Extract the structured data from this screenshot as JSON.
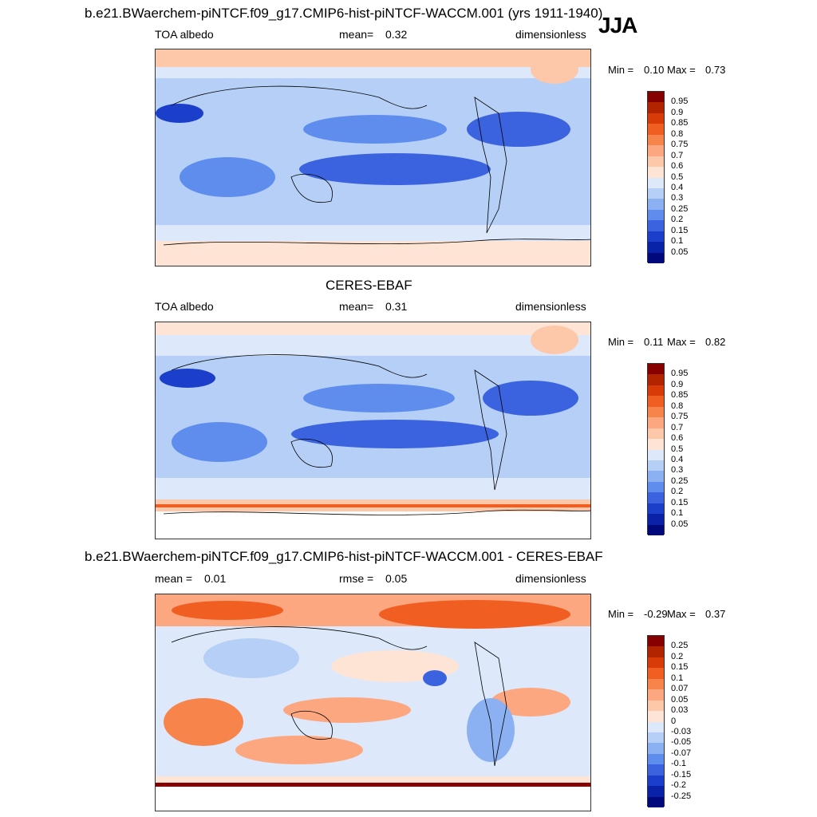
{
  "header": {
    "main_title": "b.e21.BWaerchem-piNTCF.f09_g17.CMIP6-hist-piNTCF-WACCM.001 (yrs 1911-1940)",
    "season": "JJA"
  },
  "panels": [
    {
      "id": "model",
      "title": "",
      "variable": "TOA albedo",
      "stat_label": "mean=",
      "stat_value": "0.32",
      "units": "dimensionless",
      "min_label": "Min =",
      "min_value": "0.10",
      "max_label": "Max =",
      "max_value": "0.73",
      "colorbar_labels": [
        "0.95",
        "0.9",
        "0.85",
        "0.8",
        "0.75",
        "0.7",
        "0.6",
        "0.5",
        "0.4",
        "0.3",
        "0.25",
        "0.2",
        "0.15",
        "0.1",
        "0.05"
      ]
    },
    {
      "id": "obs",
      "title": "CERES-EBAF",
      "variable": "TOA albedo",
      "stat_label": "mean=",
      "stat_value": "0.31",
      "units": "dimensionless",
      "min_label": "Min =",
      "min_value": "0.11",
      "max_label": "Max =",
      "max_value": "0.82",
      "colorbar_labels": [
        "0.95",
        "0.9",
        "0.85",
        "0.8",
        "0.75",
        "0.7",
        "0.6",
        "0.5",
        "0.4",
        "0.3",
        "0.25",
        "0.2",
        "0.15",
        "0.1",
        "0.05"
      ]
    },
    {
      "id": "diff",
      "title": "b.e21.BWaerchem-piNTCF.f09_g17.CMIP6-hist-piNTCF-WACCM.001 - CERES-EBAF",
      "variable": "mean =",
      "stat_label": "rmse =",
      "stat_value": "0.05",
      "mean_value": "0.01",
      "units": "dimensionless",
      "min_label": "Min =",
      "min_value": "-0.29",
      "max_label": "Max =",
      "max_value": "0.37",
      "colorbar_labels": [
        "0.25",
        "0.2",
        "0.15",
        "0.1",
        "0.07",
        "0.05",
        "0.03",
        "0",
        "-0.03",
        "-0.05",
        "-0.07",
        "-0.1",
        "-0.15",
        "-0.2",
        "-0.25"
      ]
    }
  ],
  "colors": {
    "field_scale": [
      "#870000",
      "#b22300",
      "#d83a08",
      "#f05e22",
      "#f7844b",
      "#fca77f",
      "#fdc8aa",
      "#fee4d4",
      "#dde9fb",
      "#b5cff6",
      "#8bb1f2",
      "#5e8ded",
      "#3b63e0",
      "#1b3fcb",
      "#0a22a8",
      "#00097c"
    ]
  }
}
